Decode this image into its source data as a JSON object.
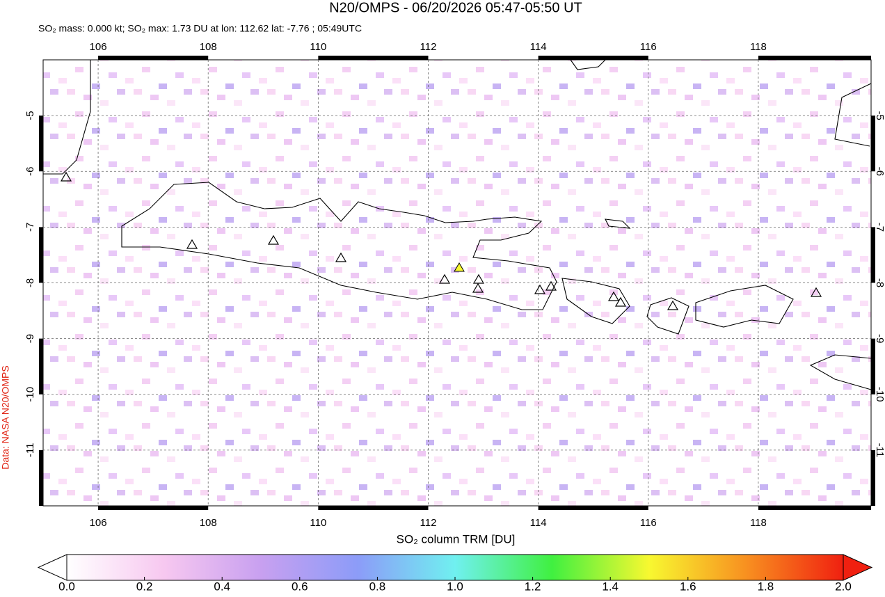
{
  "chart_data": {
    "type": "map",
    "title": "N20/OMPS - 06/20/2026 05:47-05:50 UT",
    "subtitle": "SO₂ mass: 0.000 kt; SO₂ max: 1.73 DU at lon: 112.62 lat: -7.76 ; 05:49UTC",
    "credit": "Data: NASA N20/OMPS",
    "xlim": [
      105,
      120.05
    ],
    "xticks": [
      106,
      108,
      110,
      112,
      114,
      116,
      118
    ],
    "ylim": [
      -12,
      -4
    ],
    "yticks": [
      -5,
      -6,
      -7,
      -8,
      -9,
      -10,
      -11
    ],
    "grid": true,
    "colorbar": {
      "label": "SO₂ column TRM [DU]",
      "lim": [
        0,
        2
      ],
      "ticks": [
        {
          "value": 0,
          "label": "0.0"
        },
        {
          "value": 0.2,
          "label": "0.2"
        },
        {
          "value": 0.4,
          "label": "0.4"
        },
        {
          "value": 0.6,
          "label": "0.6"
        },
        {
          "value": 0.8,
          "label": "0.8"
        },
        {
          "value": 1,
          "label": "1.0"
        },
        {
          "value": 1.2,
          "label": "1.2"
        },
        {
          "value": 1.4,
          "label": "1.4"
        },
        {
          "value": 1.6,
          "label": "1.6"
        },
        {
          "value": 1.8,
          "label": "1.8"
        },
        {
          "value": 2,
          "label": "2.0"
        }
      ],
      "colors": [
        "#ffffff",
        "#f7c8f0",
        "#c8a0f0",
        "#8c9cf8",
        "#70f0f0",
        "#40f040",
        "#f8f830",
        "#f89020",
        "#f02010"
      ]
    }
  }
}
